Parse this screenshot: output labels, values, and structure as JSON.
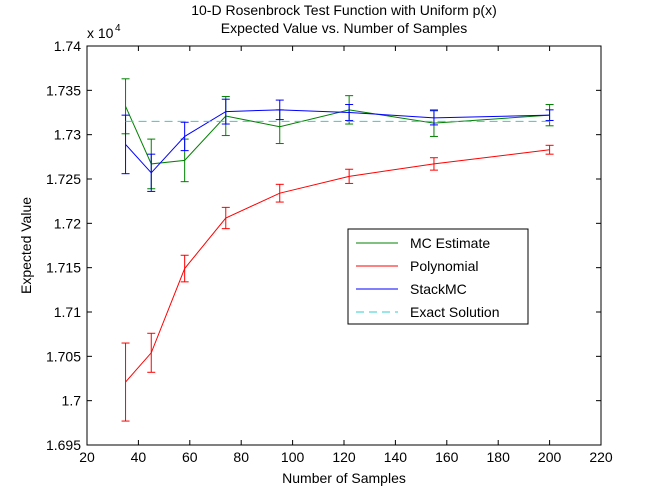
{
  "chart_data": {
    "type": "line",
    "title": [
      "10-D Rosenbrock Test Function with Uniform p(x)",
      "Expected Value vs. Number of Samples"
    ],
    "xlabel": "Number of Samples",
    "ylabel": "Expected Value",
    "xlim": [
      20,
      220
    ],
    "ylim": [
      1.695,
      1.74
    ],
    "y_multiplier": "x 10",
    "y_multiplier_exp": "4",
    "xticks": [
      20,
      40,
      60,
      80,
      100,
      120,
      140,
      160,
      180,
      200,
      220
    ],
    "xtick_labels": [
      "20",
      "40",
      "60",
      "80",
      "100",
      "120",
      "140",
      "160",
      "180",
      "200",
      "220"
    ],
    "yticks": [
      1.695,
      1.7,
      1.705,
      1.71,
      1.715,
      1.72,
      1.725,
      1.73,
      1.735,
      1.74
    ],
    "ytick_labels": [
      "1.695",
      "1.7",
      "1.705",
      "1.71",
      "1.715",
      "1.72",
      "1.725",
      "1.73",
      "1.735",
      "1.74"
    ],
    "grid": false,
    "legend_position": "center-right",
    "x": [
      35,
      45,
      58,
      74,
      95,
      122,
      155,
      200
    ],
    "series": [
      {
        "name": "MC Estimate",
        "color": "#008000",
        "style": "solid",
        "values": [
          1.7332,
          1.7267,
          1.7271,
          1.7321,
          1.7309,
          1.7328,
          1.7313,
          1.7322
        ],
        "errors": [
          0.0031,
          0.0028,
          0.0024,
          0.0022,
          0.0019,
          0.0016,
          0.0015,
          0.0012
        ]
      },
      {
        "name": "Polynomial",
        "color": "#ff0000",
        "style": "solid",
        "values": [
          1.7021,
          1.7054,
          1.7149,
          1.7206,
          1.7234,
          1.7253,
          1.7267,
          1.7283
        ],
        "errors": [
          0.0044,
          0.0022,
          0.0015,
          0.0012,
          0.001,
          0.0008,
          0.0007,
          0.0005
        ]
      },
      {
        "name": "StackMC",
        "color": "#0000ff",
        "style": "solid",
        "values": [
          1.7289,
          1.7257,
          1.7298,
          1.7326,
          1.7328,
          1.7325,
          1.7319,
          1.7322
        ],
        "errors": [
          0.0033,
          0.0021,
          0.0016,
          0.0014,
          0.0011,
          0.0009,
          0.0008,
          0.0006
        ]
      },
      {
        "name": "Exact Solution",
        "color": "#33cccc",
        "style": "dashed",
        "values": [
          1.7315,
          1.7315,
          1.7315,
          1.7315,
          1.7315,
          1.7315,
          1.7315,
          1.7315
        ],
        "errors": null
      }
    ]
  }
}
